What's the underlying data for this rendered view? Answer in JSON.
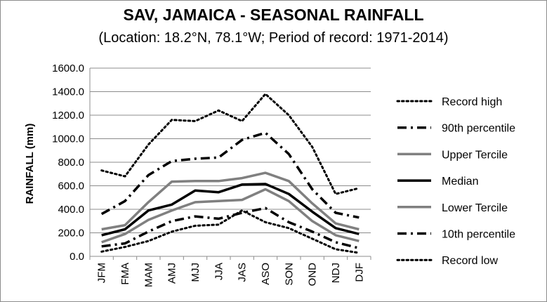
{
  "chart_data": {
    "type": "line",
    "title": "SAV, JAMAICA - SEASONAL RAINFALL",
    "subtitle": "(Location: 18.2°N, 78.1°W; Period of record: 1971-2014)",
    "xlabel": "",
    "ylabel": "RAINFALL (mm)",
    "ylim": [
      0,
      1600
    ],
    "yticks": [
      "0.0",
      "200.0",
      "400.0",
      "600.0",
      "800.0",
      "1000.0",
      "1200.0",
      "1400.0",
      "1600.0"
    ],
    "grid": true,
    "legend_position": "right",
    "categories": [
      "JFM",
      "FMA",
      "MAM",
      "AMJ",
      "MJJ",
      "JJA",
      "JAS",
      "ASO",
      "SON",
      "OND",
      "NDJ",
      "DJF"
    ],
    "series": [
      {
        "name": "Record high",
        "style": "dotted",
        "color": "#000000",
        "values": [
          730,
          680,
          950,
          1160,
          1150,
          1240,
          1150,
          1380,
          1200,
          930,
          530,
          580
        ]
      },
      {
        "name": "90th percentile",
        "style": "dashdot",
        "color": "#000000",
        "values": [
          360,
          470,
          690,
          810,
          830,
          840,
          990,
          1050,
          870,
          570,
          370,
          330
        ]
      },
      {
        "name": "Upper Tercile",
        "style": "solid",
        "color": "#808080",
        "values": [
          230,
          265,
          460,
          635,
          640,
          640,
          665,
          710,
          640,
          450,
          280,
          230
        ]
      },
      {
        "name": "Median",
        "style": "solid",
        "color": "#000000",
        "values": [
          180,
          230,
          390,
          440,
          560,
          545,
          610,
          615,
          530,
          380,
          240,
          190
        ]
      },
      {
        "name": "Lower Tercile",
        "style": "solid",
        "color": "#808080",
        "values": [
          120,
          190,
          310,
          390,
          460,
          470,
          480,
          570,
          470,
          300,
          180,
          130
        ]
      },
      {
        "name": "10th percentile",
        "style": "dashdot",
        "color": "#000000",
        "values": [
          85,
          110,
          210,
          300,
          340,
          320,
          370,
          410,
          290,
          210,
          120,
          70
        ]
      },
      {
        "name": "Record low",
        "style": "dotted",
        "color": "#000000",
        "values": [
          40,
          80,
          130,
          210,
          260,
          270,
          390,
          290,
          240,
          150,
          60,
          30
        ]
      }
    ]
  }
}
